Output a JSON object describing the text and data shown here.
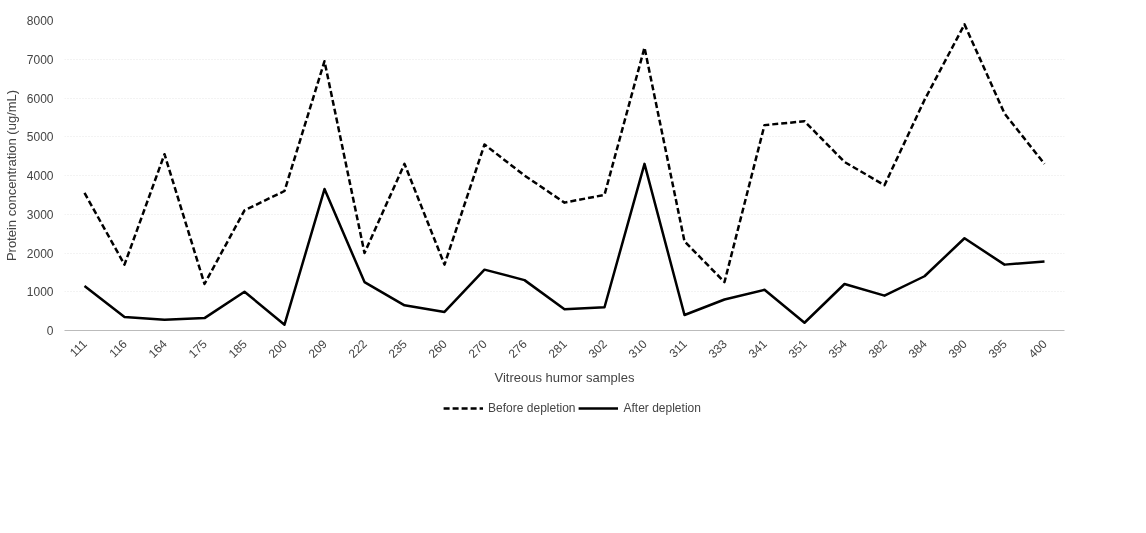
{
  "chart_data": {
    "type": "line",
    "xlabel": "Vitreous humor samples",
    "ylabel": "Protein concentration (ug/mL)",
    "categories": [
      "111",
      "116",
      "164",
      "175",
      "185",
      "200",
      "209",
      "222",
      "235",
      "260",
      "270",
      "276",
      "281",
      "302",
      "310",
      "311",
      "333",
      "341",
      "351",
      "354",
      "382",
      "384",
      "390",
      "395",
      "400"
    ],
    "series": [
      {
        "name": "Before depletion",
        "color": "#000000",
        "line_style": "dashed",
        "values": [
          3550,
          1700,
          4550,
          1200,
          3100,
          3600,
          6950,
          2000,
          4300,
          1700,
          4800,
          4000,
          3300,
          3500,
          7300,
          2300,
          1250,
          5300,
          5400,
          4350,
          3750,
          5950,
          7900,
          5600,
          4300
        ]
      },
      {
        "name": "After depletion",
        "color": "#000000",
        "line_style": "solid",
        "values": [
          1150,
          350,
          280,
          320,
          1000,
          150,
          3650,
          1250,
          650,
          480,
          1570,
          1300,
          550,
          600,
          4300,
          400,
          800,
          1050,
          200,
          1200,
          900,
          1400,
          2380,
          1700,
          1780
        ]
      }
    ],
    "ylim": [
      0,
      8000
    ],
    "yticks": [
      0,
      1000,
      2000,
      3000,
      4000,
      5000,
      6000,
      7000,
      8000
    ],
    "grid": "y",
    "legend": "bottom",
    "marker": "none"
  }
}
